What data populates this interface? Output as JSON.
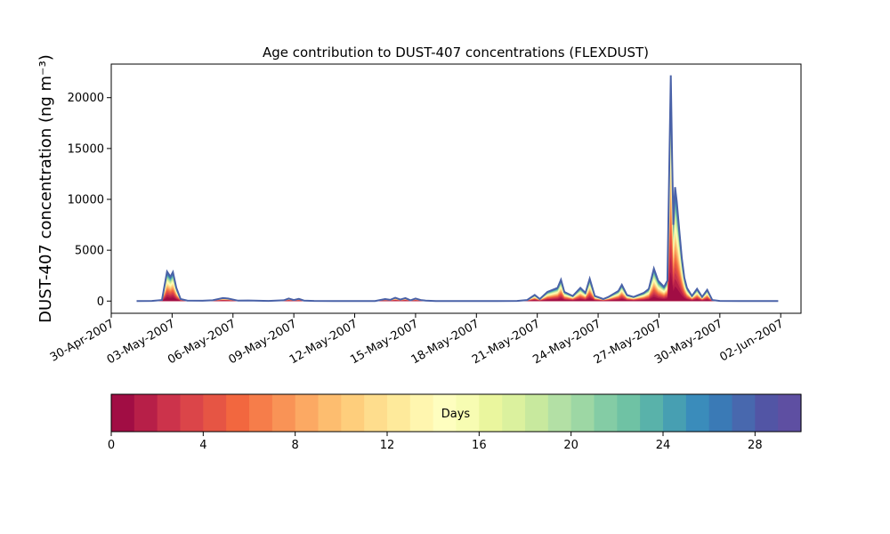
{
  "chart_data": {
    "type": "area",
    "title": "Age contribution to DUST-407 concentrations (FLEXDUST)",
    "ylabel": "DUST-407 concentration (ng m⁻³)",
    "xlabel": "",
    "ylim": [
      -1200,
      23300
    ],
    "y_ticks": [
      0,
      5000,
      10000,
      15000,
      20000
    ],
    "x_range": [
      "2007-04-30T00:00",
      "2007-06-03T00:00"
    ],
    "x_ticks": [
      {
        "date": "2007-04-30",
        "label": "30-Apr-2007"
      },
      {
        "date": "2007-05-03",
        "label": "03-May-2007"
      },
      {
        "date": "2007-05-06",
        "label": "06-May-2007"
      },
      {
        "date": "2007-05-09",
        "label": "09-May-2007"
      },
      {
        "date": "2007-05-12",
        "label": "12-May-2007"
      },
      {
        "date": "2007-05-15",
        "label": "15-May-2007"
      },
      {
        "date": "2007-05-18",
        "label": "18-May-2007"
      },
      {
        "date": "2007-05-21",
        "label": "21-May-2007"
      },
      {
        "date": "2007-05-24",
        "label": "24-May-2007"
      },
      {
        "date": "2007-05-27",
        "label": "27-May-2007"
      },
      {
        "date": "2007-05-30",
        "label": "30-May-2007"
      },
      {
        "date": "2007-06-02",
        "label": "02-Jun-2007"
      }
    ],
    "total_series": {
      "name": "total",
      "color": "#4a62a8",
      "points": [
        [
          "2007-05-01T06:00",
          0
        ],
        [
          "2007-05-02T00:00",
          20
        ],
        [
          "2007-05-02T12:00",
          100
        ],
        [
          "2007-05-02T18:00",
          2900
        ],
        [
          "2007-05-02T22:00",
          2400
        ],
        [
          "2007-05-03T01:00",
          2850
        ],
        [
          "2007-05-03T05:00",
          1300
        ],
        [
          "2007-05-03T10:00",
          200
        ],
        [
          "2007-05-03T18:00",
          50
        ],
        [
          "2007-05-04T12:00",
          30
        ],
        [
          "2007-05-05T00:00",
          80
        ],
        [
          "2007-05-05T12:00",
          300
        ],
        [
          "2007-05-05T18:00",
          250
        ],
        [
          "2007-05-06T06:00",
          40
        ],
        [
          "2007-05-06T18:00",
          60
        ],
        [
          "2007-05-07T18:00",
          20
        ],
        [
          "2007-05-08T12:00",
          80
        ],
        [
          "2007-05-08T18:00",
          250
        ],
        [
          "2007-05-09T00:00",
          100
        ],
        [
          "2007-05-09T06:00",
          220
        ],
        [
          "2007-05-09T12:00",
          50
        ],
        [
          "2007-05-10T00:00",
          20
        ],
        [
          "2007-05-11T00:00",
          10
        ],
        [
          "2007-05-12T00:00",
          10
        ],
        [
          "2007-05-13T00:00",
          10
        ],
        [
          "2007-05-13T12:00",
          200
        ],
        [
          "2007-05-13T18:00",
          120
        ],
        [
          "2007-05-14T00:00",
          320
        ],
        [
          "2007-05-14T06:00",
          150
        ],
        [
          "2007-05-14T12:00",
          300
        ],
        [
          "2007-05-14T18:00",
          80
        ],
        [
          "2007-05-15T00:00",
          250
        ],
        [
          "2007-05-15T06:00",
          100
        ],
        [
          "2007-05-15T12:00",
          40
        ],
        [
          "2007-05-16T00:00",
          10
        ],
        [
          "2007-05-17T00:00",
          5
        ],
        [
          "2007-05-18T00:00",
          5
        ],
        [
          "2007-05-19T00:00",
          5
        ],
        [
          "2007-05-20T00:00",
          20
        ],
        [
          "2007-05-20T12:00",
          100
        ],
        [
          "2007-05-20T21:00",
          600
        ],
        [
          "2007-05-21T03:00",
          200
        ],
        [
          "2007-05-21T12:00",
          900
        ],
        [
          "2007-05-22T00:00",
          1300
        ],
        [
          "2007-05-22T04:00",
          2100
        ],
        [
          "2007-05-22T08:00",
          900
        ],
        [
          "2007-05-22T18:00",
          500
        ],
        [
          "2007-05-23T03:00",
          1300
        ],
        [
          "2007-05-23T09:00",
          800
        ],
        [
          "2007-05-23T14:00",
          2200
        ],
        [
          "2007-05-23T20:00",
          500
        ],
        [
          "2007-05-24T06:00",
          200
        ],
        [
          "2007-05-24T12:00",
          400
        ],
        [
          "2007-05-25T00:00",
          1000
        ],
        [
          "2007-05-25T04:00",
          1600
        ],
        [
          "2007-05-25T10:00",
          600
        ],
        [
          "2007-05-25T18:00",
          400
        ],
        [
          "2007-05-26T06:00",
          800
        ],
        [
          "2007-05-26T12:00",
          1200
        ],
        [
          "2007-05-26T18:00",
          3200
        ],
        [
          "2007-05-26T23:00",
          2000
        ],
        [
          "2007-05-27T06:00",
          1400
        ],
        [
          "2007-05-27T10:00",
          2000
        ],
        [
          "2007-05-27T14:00",
          22200
        ],
        [
          "2007-05-27T15:30",
          14000
        ],
        [
          "2007-05-27T17:00",
          7500
        ],
        [
          "2007-05-27T19:00",
          11200
        ],
        [
          "2007-05-27T21:00",
          9800
        ],
        [
          "2007-05-28T00:00",
          7000
        ],
        [
          "2007-05-28T03:00",
          4200
        ],
        [
          "2007-05-28T06:00",
          2300
        ],
        [
          "2007-05-28T09:00",
          1300
        ],
        [
          "2007-05-28T15:00",
          500
        ],
        [
          "2007-05-28T21:00",
          1200
        ],
        [
          "2007-05-29T03:00",
          400
        ],
        [
          "2007-05-29T09:00",
          1100
        ],
        [
          "2007-05-29T15:00",
          100
        ],
        [
          "2007-05-30T00:00",
          20
        ],
        [
          "2007-05-31T00:00",
          10
        ],
        [
          "2007-06-01T00:00",
          10
        ],
        [
          "2007-06-01T21:00",
          0
        ]
      ]
    },
    "age_colorbar": {
      "label": "Days",
      "min": 0,
      "max": 30,
      "ticks": [
        0,
        4,
        8,
        12,
        16,
        20,
        24,
        28
      ],
      "bins": 30,
      "colors": [
        "#a10d44",
        "#b71f48",
        "#cc334b",
        "#db4549",
        "#e65544",
        "#f2673f",
        "#f67d4a",
        "#f99356",
        "#fca963",
        "#fdbd6f",
        "#fece7c",
        "#fedd8d",
        "#feea9b",
        "#fff6af",
        "#fefebf",
        "#f7fcb2",
        "#eaf69e",
        "#dbf19e",
        "#c8e99e",
        "#b3e0a5",
        "#9dd7a4",
        "#84cca5",
        "#6fc2a4",
        "#59b2aa",
        "#479fb2",
        "#3a8cbb",
        "#3a7ab6",
        "#4868ae",
        "#5255a5",
        "#5e4fa2"
      ]
    }
  }
}
